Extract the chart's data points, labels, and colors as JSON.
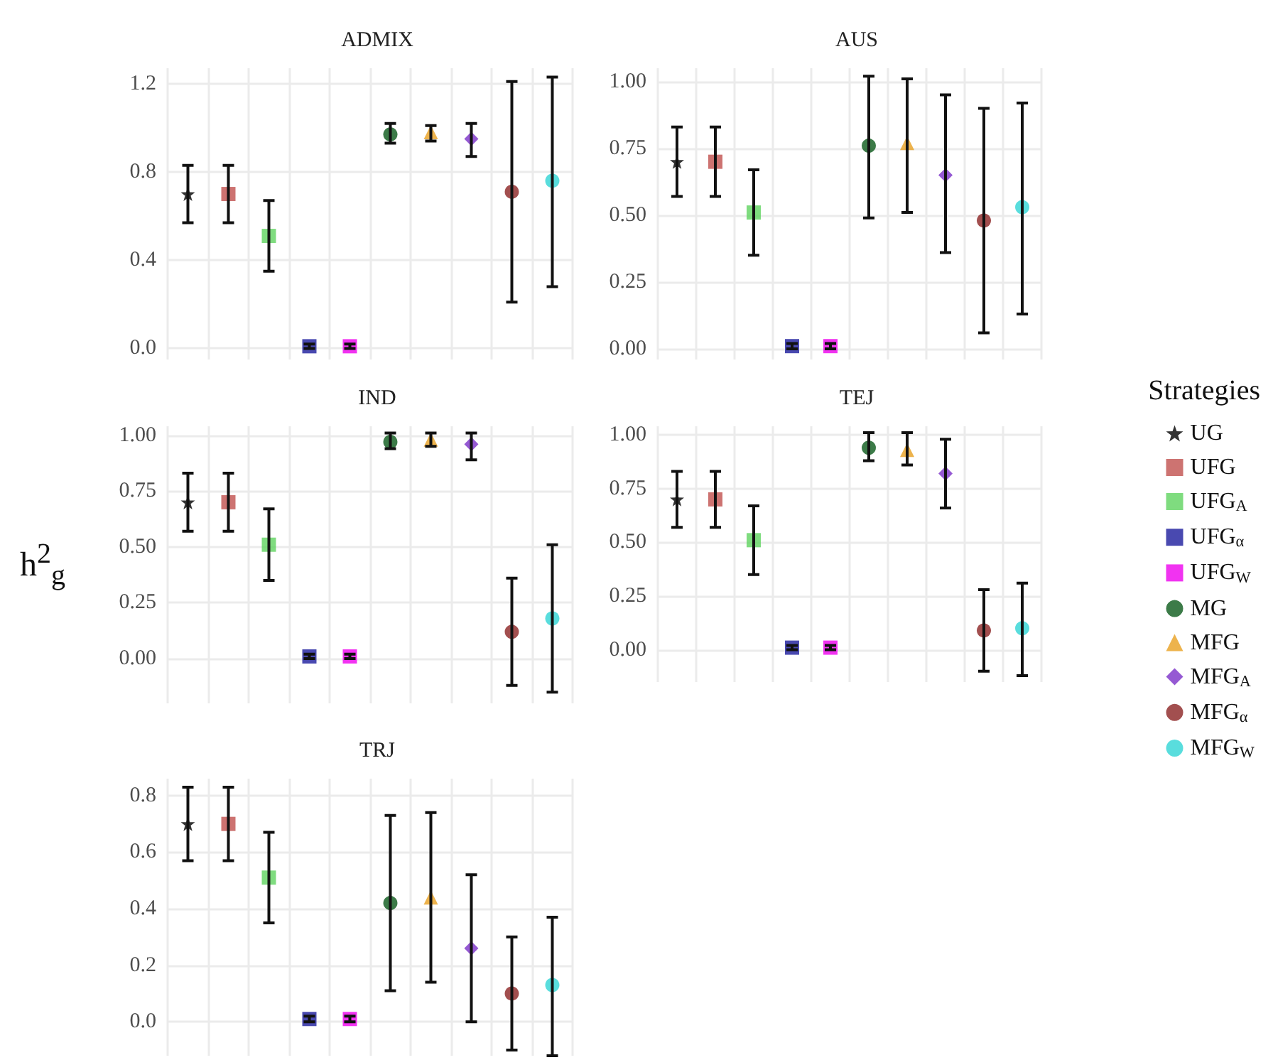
{
  "chart_data": [
    {
      "type": "scatter",
      "title": "ADMIX",
      "categories": [
        null,
        null,
        null,
        null,
        null,
        null,
        null,
        null,
        null,
        null
      ],
      "ylim": [
        -0.05,
        1.27
      ],
      "yticks": [
        {
          "value": 0,
          "label": "0.0"
        },
        0.4,
        0.8,
        1.2
      ],
      "grid": true,
      "tick_labels": "y",
      "legend": false,
      "series": [
        {
          "color": "#000000",
          "marker": "star",
          "values": [
            0.7,
            null,
            null,
            null,
            null,
            null,
            null,
            null,
            null,
            null
          ],
          "errors": [
            [
              0.57,
              0.83
            ],
            null,
            null,
            null,
            null,
            null,
            null,
            null,
            null,
            null
          ]
        },
        {
          "color": "#c0504d",
          "marker": "square",
          "values": [
            null,
            0.7,
            null,
            null,
            null,
            null,
            null,
            null,
            null,
            null
          ],
          "errors": [
            null,
            [
              0.57,
              0.83
            ],
            null,
            null,
            null,
            null,
            null,
            null,
            null,
            null
          ]
        },
        {
          "color": "#5fd35f",
          "marker": "square",
          "values": [
            null,
            null,
            0.51,
            null,
            null,
            null,
            null,
            null,
            null,
            null
          ],
          "errors": [
            null,
            null,
            [
              0.35,
              0.67
            ],
            null,
            null,
            null,
            null,
            null,
            null,
            null
          ]
        },
        {
          "color": "#1c1c9c",
          "marker": "square",
          "values": [
            null,
            null,
            null,
            0.01,
            null,
            null,
            null,
            null,
            null,
            null
          ],
          "errors": [
            null,
            null,
            null,
            [
              0,
              0.02
            ],
            null,
            null,
            null,
            null,
            null,
            null
          ]
        },
        {
          "color": "#ee00ee",
          "marker": "square",
          "values": [
            null,
            null,
            null,
            null,
            0.01,
            null,
            null,
            null,
            null,
            null
          ],
          "errors": [
            null,
            null,
            null,
            null,
            [
              0,
              0.02
            ],
            null,
            null,
            null,
            null,
            null
          ]
        },
        {
          "color": "#0b5a1a",
          "marker": "circle",
          "values": [
            null,
            null,
            null,
            null,
            null,
            0.97,
            null,
            null,
            null,
            null
          ],
          "errors": [
            null,
            null,
            null,
            null,
            null,
            [
              0.93,
              1.02
            ],
            null,
            null,
            null,
            null
          ]
        },
        {
          "color": "#e8a020",
          "marker": "triangle",
          "values": [
            null,
            null,
            null,
            null,
            null,
            null,
            0.98,
            null,
            null,
            null
          ],
          "errors": [
            null,
            null,
            null,
            null,
            null,
            null,
            [
              0.94,
              1.01
            ],
            null,
            null,
            null
          ]
        },
        {
          "color": "#7b2fc8",
          "marker": "diamond",
          "values": [
            null,
            null,
            null,
            null,
            null,
            null,
            null,
            0.95,
            null,
            null
          ],
          "errors": [
            null,
            null,
            null,
            null,
            null,
            null,
            null,
            [
              0.87,
              1.02
            ],
            null,
            null
          ]
        },
        {
          "color": "#8b2323",
          "marker": "circle",
          "values": [
            null,
            null,
            null,
            null,
            null,
            null,
            null,
            null,
            0.71,
            null
          ],
          "errors": [
            null,
            null,
            null,
            null,
            null,
            null,
            null,
            null,
            [
              0.21,
              1.21
            ],
            null
          ]
        },
        {
          "color": "#30d5d5",
          "marker": "circle",
          "values": [
            null,
            null,
            null,
            null,
            null,
            null,
            null,
            null,
            null,
            0.76
          ],
          "errors": [
            null,
            null,
            null,
            null,
            null,
            null,
            null,
            null,
            null,
            [
              0.28,
              1.23
            ]
          ]
        }
      ]
    },
    {
      "type": "scatter",
      "title": "AUS",
      "categories": [
        null,
        null,
        null,
        null,
        null,
        null,
        null,
        null,
        null,
        null
      ],
      "ylim": [
        -0.04,
        1.05
      ],
      "yticks": [
        {
          "value": 0,
          "label": "0.00"
        },
        0.25,
        {
          "value": 0.5,
          "label": "0.50"
        },
        0.75,
        {
          "value": 1,
          "label": "1.00"
        }
      ],
      "grid": true,
      "tick_labels": "y",
      "legend": false,
      "series": [
        {
          "color": "#000000",
          "marker": "star",
          "values": [
            0.7,
            null,
            null,
            null,
            null,
            null,
            null,
            null,
            null,
            null
          ],
          "errors": [
            [
              0.57,
              0.83
            ],
            null,
            null,
            null,
            null,
            null,
            null,
            null,
            null,
            null
          ]
        },
        {
          "color": "#c0504d",
          "marker": "square",
          "values": [
            null,
            0.7,
            null,
            null,
            null,
            null,
            null,
            null,
            null,
            null
          ],
          "errors": [
            null,
            [
              0.57,
              0.83
            ],
            null,
            null,
            null,
            null,
            null,
            null,
            null,
            null
          ]
        },
        {
          "color": "#5fd35f",
          "marker": "square",
          "values": [
            null,
            null,
            0.51,
            null,
            null,
            null,
            null,
            null,
            null,
            null
          ],
          "errors": [
            null,
            null,
            [
              0.35,
              0.67
            ],
            null,
            null,
            null,
            null,
            null,
            null,
            null
          ]
        },
        {
          "color": "#1c1c9c",
          "marker": "square",
          "values": [
            null,
            null,
            null,
            0.01,
            null,
            null,
            null,
            null,
            null,
            null
          ],
          "errors": [
            null,
            null,
            null,
            [
              0,
              0.02
            ],
            null,
            null,
            null,
            null,
            null,
            null
          ]
        },
        {
          "color": "#ee00ee",
          "marker": "square",
          "values": [
            null,
            null,
            null,
            null,
            0.01,
            null,
            null,
            null,
            null,
            null
          ],
          "errors": [
            null,
            null,
            null,
            null,
            [
              0,
              0.02
            ],
            null,
            null,
            null,
            null,
            null
          ]
        },
        {
          "color": "#0b5a1a",
          "marker": "circle",
          "values": [
            null,
            null,
            null,
            null,
            null,
            0.76,
            null,
            null,
            null,
            null
          ],
          "errors": [
            null,
            null,
            null,
            null,
            null,
            [
              0.49,
              1.02
            ],
            null,
            null,
            null,
            null
          ]
        },
        {
          "color": "#e8a020",
          "marker": "triangle",
          "values": [
            null,
            null,
            null,
            null,
            null,
            null,
            0.77,
            null,
            null,
            null
          ],
          "errors": [
            null,
            null,
            null,
            null,
            null,
            null,
            [
              0.51,
              1.01
            ],
            null,
            null,
            null
          ]
        },
        {
          "color": "#7b2fc8",
          "marker": "diamond",
          "values": [
            null,
            null,
            null,
            null,
            null,
            null,
            null,
            0.65,
            null,
            null
          ],
          "errors": [
            null,
            null,
            null,
            null,
            null,
            null,
            null,
            [
              0.36,
              0.95
            ],
            null,
            null
          ]
        },
        {
          "color": "#8b2323",
          "marker": "circle",
          "values": [
            null,
            null,
            null,
            null,
            null,
            null,
            null,
            null,
            0.48,
            null
          ],
          "errors": [
            null,
            null,
            null,
            null,
            null,
            null,
            null,
            null,
            [
              0.06,
              0.9
            ],
            null
          ]
        },
        {
          "color": "#30d5d5",
          "marker": "circle",
          "values": [
            null,
            null,
            null,
            null,
            null,
            null,
            null,
            null,
            null,
            0.53
          ],
          "errors": [
            null,
            null,
            null,
            null,
            null,
            null,
            null,
            null,
            null,
            [
              0.13,
              0.92
            ]
          ]
        }
      ]
    },
    {
      "type": "scatter",
      "title": "IND",
      "ylabel": "h$^{2}$$_{g}$",
      "categories": [
        null,
        null,
        null,
        null,
        null,
        null,
        null,
        null,
        null,
        null
      ],
      "ylim": [
        -0.2,
        1.04
      ],
      "yticks": [
        {
          "value": 0,
          "label": "0.00"
        },
        0.25,
        {
          "value": 0.5,
          "label": "0.50"
        },
        0.75,
        {
          "value": 1,
          "label": "1.00"
        }
      ],
      "grid": true,
      "tick_labels": "y",
      "legend": false,
      "series": [
        {
          "color": "#000000",
          "marker": "star",
          "values": [
            0.7,
            null,
            null,
            null,
            null,
            null,
            null,
            null,
            null,
            null
          ],
          "errors": [
            [
              0.57,
              0.83
            ],
            null,
            null,
            null,
            null,
            null,
            null,
            null,
            null,
            null
          ]
        },
        {
          "color": "#c0504d",
          "marker": "square",
          "values": [
            null,
            0.7,
            null,
            null,
            null,
            null,
            null,
            null,
            null,
            null
          ],
          "errors": [
            null,
            [
              0.57,
              0.83
            ],
            null,
            null,
            null,
            null,
            null,
            null,
            null,
            null
          ]
        },
        {
          "color": "#5fd35f",
          "marker": "square",
          "values": [
            null,
            null,
            0.51,
            null,
            null,
            null,
            null,
            null,
            null,
            null
          ],
          "errors": [
            null,
            null,
            [
              0.35,
              0.67
            ],
            null,
            null,
            null,
            null,
            null,
            null,
            null
          ]
        },
        {
          "color": "#1c1c9c",
          "marker": "square",
          "values": [
            null,
            null,
            null,
            0.01,
            null,
            null,
            null,
            null,
            null,
            null
          ],
          "errors": [
            null,
            null,
            null,
            [
              0,
              0.02
            ],
            null,
            null,
            null,
            null,
            null,
            null
          ]
        },
        {
          "color": "#ee00ee",
          "marker": "square",
          "values": [
            null,
            null,
            null,
            null,
            0.01,
            null,
            null,
            null,
            null,
            null
          ],
          "errors": [
            null,
            null,
            null,
            null,
            [
              0,
              0.02
            ],
            null,
            null,
            null,
            null,
            null
          ]
        },
        {
          "color": "#0b5a1a",
          "marker": "circle",
          "values": [
            null,
            null,
            null,
            null,
            null,
            0.97,
            null,
            null,
            null,
            null
          ],
          "errors": [
            null,
            null,
            null,
            null,
            null,
            [
              0.94,
              1.01
            ],
            null,
            null,
            null,
            null
          ]
        },
        {
          "color": "#e8a020",
          "marker": "triangle",
          "values": [
            null,
            null,
            null,
            null,
            null,
            null,
            0.98,
            null,
            null,
            null
          ],
          "errors": [
            null,
            null,
            null,
            null,
            null,
            null,
            [
              0.95,
              1.01
            ],
            null,
            null,
            null
          ]
        },
        {
          "color": "#7b2fc8",
          "marker": "diamond",
          "values": [
            null,
            null,
            null,
            null,
            null,
            null,
            null,
            0.96,
            null,
            null
          ],
          "errors": [
            null,
            null,
            null,
            null,
            null,
            null,
            null,
            [
              0.89,
              1.01
            ],
            null,
            null
          ]
        },
        {
          "color": "#8b2323",
          "marker": "circle",
          "values": [
            null,
            null,
            null,
            null,
            null,
            null,
            null,
            null,
            0.12,
            null
          ],
          "errors": [
            null,
            null,
            null,
            null,
            null,
            null,
            null,
            null,
            [
              -0.12,
              0.36
            ],
            null
          ]
        },
        {
          "color": "#30d5d5",
          "marker": "circle",
          "values": [
            null,
            null,
            null,
            null,
            null,
            null,
            null,
            null,
            null,
            0.18
          ],
          "errors": [
            null,
            null,
            null,
            null,
            null,
            null,
            null,
            null,
            null,
            [
              -0.15,
              0.51
            ]
          ]
        }
      ]
    },
    {
      "type": "scatter",
      "title": "TEJ",
      "legend_title": "Strategies",
      "categories": [
        null,
        null,
        null,
        null,
        null,
        null,
        null,
        null,
        null,
        null
      ],
      "ylim": [
        -0.15,
        1.04
      ],
      "yticks": [
        {
          "value": 0,
          "label": "0.00"
        },
        0.25,
        {
          "value": 0.5,
          "label": "0.50"
        },
        0.75,
        {
          "value": 1,
          "label": "1.00"
        }
      ],
      "grid": true,
      "tick_labels": "y",
      "legend": "right",
      "series": [
        {
          "name": "UG",
          "color": "#000000",
          "marker": "star",
          "values": [
            0.7,
            null,
            null,
            null,
            null,
            null,
            null,
            null,
            null,
            null
          ],
          "errors": [
            [
              0.57,
              0.83
            ],
            null,
            null,
            null,
            null,
            null,
            null,
            null,
            null,
            null
          ]
        },
        {
          "name": "UFG",
          "color": "#c0504d",
          "marker": "square",
          "values": [
            null,
            0.7,
            null,
            null,
            null,
            null,
            null,
            null,
            null,
            null
          ],
          "errors": [
            null,
            [
              0.57,
              0.83
            ],
            null,
            null,
            null,
            null,
            null,
            null,
            null,
            null
          ]
        },
        {
          "name": "UFG$_{A}$",
          "color": "#5fd35f",
          "marker": "square",
          "values": [
            null,
            null,
            0.51,
            null,
            null,
            null,
            null,
            null,
            null,
            null
          ],
          "errors": [
            null,
            null,
            [
              0.35,
              0.67
            ],
            null,
            null,
            null,
            null,
            null,
            null,
            null
          ]
        },
        {
          "name": "UFG$_{α}$",
          "color": "#1c1c9c",
          "marker": "square",
          "values": [
            null,
            null,
            null,
            0.01,
            null,
            null,
            null,
            null,
            null,
            null
          ],
          "errors": [
            null,
            null,
            null,
            [
              0,
              0.02
            ],
            null,
            null,
            null,
            null,
            null,
            null
          ]
        },
        {
          "name": "UFG$_{W}$",
          "color": "#ee00ee",
          "marker": "square",
          "values": [
            null,
            null,
            null,
            null,
            0.01,
            null,
            null,
            null,
            null,
            null
          ],
          "errors": [
            null,
            null,
            null,
            null,
            [
              0,
              0.02
            ],
            null,
            null,
            null,
            null,
            null
          ]
        },
        {
          "name": "MG",
          "color": "#0b5a1a",
          "marker": "circle",
          "values": [
            null,
            null,
            null,
            null,
            null,
            0.94,
            null,
            null,
            null,
            null
          ],
          "errors": [
            null,
            null,
            null,
            null,
            null,
            [
              0.88,
              1.01
            ],
            null,
            null,
            null,
            null
          ]
        },
        {
          "name": "MFG",
          "color": "#e8a020",
          "marker": "triangle",
          "values": [
            null,
            null,
            null,
            null,
            null,
            null,
            0.93,
            null,
            null,
            null
          ],
          "errors": [
            null,
            null,
            null,
            null,
            null,
            null,
            [
              0.86,
              1.01
            ],
            null,
            null,
            null
          ]
        },
        {
          "name": "MFG$_{A}$",
          "color": "#7b2fc8",
          "marker": "diamond",
          "values": [
            null,
            null,
            null,
            null,
            null,
            null,
            null,
            0.82,
            null,
            null
          ],
          "errors": [
            null,
            null,
            null,
            null,
            null,
            null,
            null,
            [
              0.66,
              0.98
            ],
            null,
            null
          ]
        },
        {
          "name": "MFG$_{α}$",
          "color": "#8b2323",
          "marker": "circle",
          "values": [
            null,
            null,
            null,
            null,
            null,
            null,
            null,
            null,
            0.09,
            null
          ],
          "errors": [
            null,
            null,
            null,
            null,
            null,
            null,
            null,
            null,
            [
              -0.1,
              0.28
            ],
            null
          ]
        },
        {
          "name": "MFG$_{W}$",
          "color": "#30d5d5",
          "marker": "circle",
          "values": [
            null,
            null,
            null,
            null,
            null,
            null,
            null,
            null,
            null,
            0.1
          ],
          "errors": [
            null,
            null,
            null,
            null,
            null,
            null,
            null,
            null,
            null,
            [
              -0.12,
              0.31
            ]
          ]
        }
      ]
    },
    {
      "type": "scatter",
      "title": "TRJ",
      "categories": [
        null,
        null,
        null,
        null,
        null,
        null,
        null,
        null,
        null,
        null
      ],
      "ylim": [
        -0.12,
        0.86
      ],
      "yticks": [
        {
          "value": 0,
          "label": "0.0"
        },
        0.2,
        0.4,
        0.6,
        0.8
      ],
      "grid": true,
      "tick_labels": "y",
      "legend": false,
      "series": [
        {
          "color": "#000000",
          "marker": "star",
          "values": [
            0.7,
            null,
            null,
            null,
            null,
            null,
            null,
            null,
            null,
            null
          ],
          "errors": [
            [
              0.57,
              0.83
            ],
            null,
            null,
            null,
            null,
            null,
            null,
            null,
            null,
            null
          ]
        },
        {
          "color": "#c0504d",
          "marker": "square",
          "values": [
            null,
            0.7,
            null,
            null,
            null,
            null,
            null,
            null,
            null,
            null
          ],
          "errors": [
            null,
            [
              0.57,
              0.83
            ],
            null,
            null,
            null,
            null,
            null,
            null,
            null,
            null
          ]
        },
        {
          "color": "#5fd35f",
          "marker": "square",
          "values": [
            null,
            null,
            0.51,
            null,
            null,
            null,
            null,
            null,
            null,
            null
          ],
          "errors": [
            null,
            null,
            [
              0.35,
              0.67
            ],
            null,
            null,
            null,
            null,
            null,
            null,
            null
          ]
        },
        {
          "color": "#1c1c9c",
          "marker": "square",
          "values": [
            null,
            null,
            null,
            0.01,
            null,
            null,
            null,
            null,
            null,
            null
          ],
          "errors": [
            null,
            null,
            null,
            [
              0,
              0.02
            ],
            null,
            null,
            null,
            null,
            null,
            null
          ]
        },
        {
          "color": "#ee00ee",
          "marker": "square",
          "values": [
            null,
            null,
            null,
            null,
            0.01,
            null,
            null,
            null,
            null,
            null
          ],
          "errors": [
            null,
            null,
            null,
            null,
            [
              0,
              0.02
            ],
            null,
            null,
            null,
            null,
            null
          ]
        },
        {
          "color": "#0b5a1a",
          "marker": "circle",
          "values": [
            null,
            null,
            null,
            null,
            null,
            0.42,
            null,
            null,
            null,
            null
          ],
          "errors": [
            null,
            null,
            null,
            null,
            null,
            [
              0.11,
              0.73
            ],
            null,
            null,
            null,
            null
          ]
        },
        {
          "color": "#e8a020",
          "marker": "triangle",
          "values": [
            null,
            null,
            null,
            null,
            null,
            null,
            0.44,
            null,
            null,
            null
          ],
          "errors": [
            null,
            null,
            null,
            null,
            null,
            null,
            [
              0.14,
              0.74
            ],
            null,
            null,
            null
          ]
        },
        {
          "color": "#7b2fc8",
          "marker": "diamond",
          "values": [
            null,
            null,
            null,
            null,
            null,
            null,
            null,
            0.26,
            null,
            null
          ],
          "errors": [
            null,
            null,
            null,
            null,
            null,
            null,
            null,
            [
              0.0,
              0.52
            ],
            null,
            null
          ]
        },
        {
          "color": "#8b2323",
          "marker": "circle",
          "values": [
            null,
            null,
            null,
            null,
            null,
            null,
            null,
            null,
            0.1,
            null
          ],
          "errors": [
            null,
            null,
            null,
            null,
            null,
            null,
            null,
            null,
            [
              -0.1,
              0.3
            ],
            null
          ]
        },
        {
          "color": "#30d5d5",
          "marker": "circle",
          "values": [
            null,
            null,
            null,
            null,
            null,
            null,
            null,
            null,
            null,
            0.13
          ],
          "errors": [
            null,
            null,
            null,
            null,
            null,
            null,
            null,
            null,
            null,
            [
              -0.12,
              0.37
            ]
          ]
        }
      ]
    }
  ]
}
